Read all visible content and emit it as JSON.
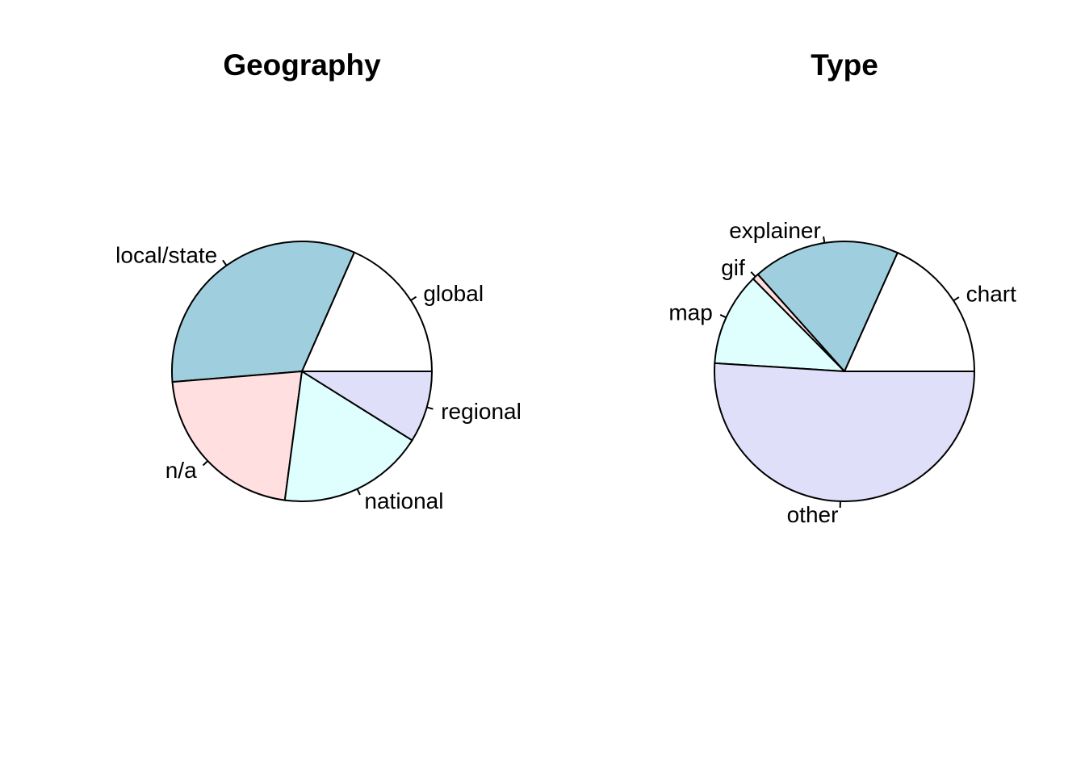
{
  "chart_data": [
    {
      "type": "pie",
      "title": "Geography",
      "slices": [
        {
          "label": "global",
          "value": 18.4,
          "color": "#ffffff"
        },
        {
          "label": "local/state",
          "value": 32.9,
          "color": "#9fcfdf"
        },
        {
          "label": "n/a",
          "value": 21.6,
          "color": "#ffdfdf"
        },
        {
          "label": "national",
          "value": 18.2,
          "color": "#dfffff"
        },
        {
          "label": "regional",
          "value": 8.9,
          "color": "#dfdff9"
        }
      ]
    },
    {
      "type": "pie",
      "title": "Type",
      "slices": [
        {
          "label": "chart",
          "value": 18.3,
          "color": "#ffffff"
        },
        {
          "label": "explainer",
          "value": 18.3,
          "color": "#9fcfdf"
        },
        {
          "label": "gif",
          "value": 0.8,
          "color": "#ffdfdf"
        },
        {
          "label": "map",
          "value": 11.6,
          "color": "#dfffff"
        },
        {
          "label": "other",
          "value": 51.0,
          "color": "#dfdff9"
        }
      ]
    }
  ]
}
